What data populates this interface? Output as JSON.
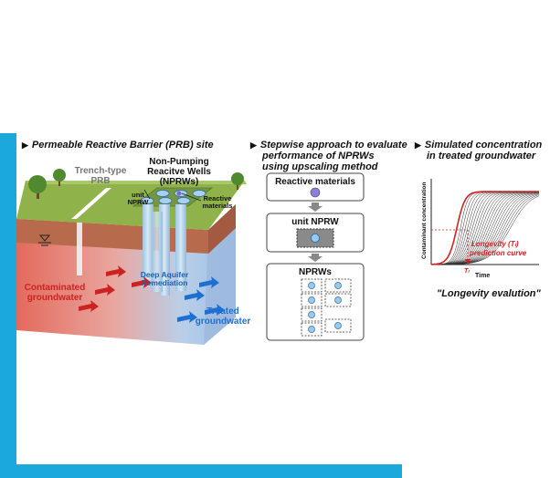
{
  "panels": {
    "site": {
      "heading": "Permeable Reactive Barrier (PRB) site",
      "labels": {
        "trench": "Trench-type\nPRB",
        "nprw_title": "Non-Pumping\nReacitve Wells\n(NPRWs)",
        "unit_nprw": "unit\nNPRW",
        "reactive": "Reactive\nmaterials",
        "contaminated": "Contaminated\ngroundwater",
        "deep": "Deep Aquifer\nRemediation",
        "treated": "Treated\ngroundwater"
      }
    },
    "stepwise": {
      "heading_lines": [
        "Stepwise approach to evaluate",
        "performance of NPRWs",
        "using upscaling method"
      ],
      "boxes": [
        "Reactive materials",
        "unit NPRW",
        "NPRWs"
      ]
    },
    "simulated": {
      "heading_lines": [
        "Simulated concentration",
        "in treated groundwater"
      ],
      "ylabel": "Contaminant concentration",
      "xlabel": "Time",
      "curve_label_lines": [
        "Longevity (Tₗ)",
        "prediction curve"
      ],
      "tl_label": "Tₗ",
      "caption": "\"Longevity evalution\""
    }
  },
  "colors": {
    "frame": "#1aa9da",
    "grass": "#8fb34a",
    "soil": "#b8674a",
    "contaminated": "#cc2222",
    "treated": "#1f6fd1",
    "curve": "#d42020"
  }
}
